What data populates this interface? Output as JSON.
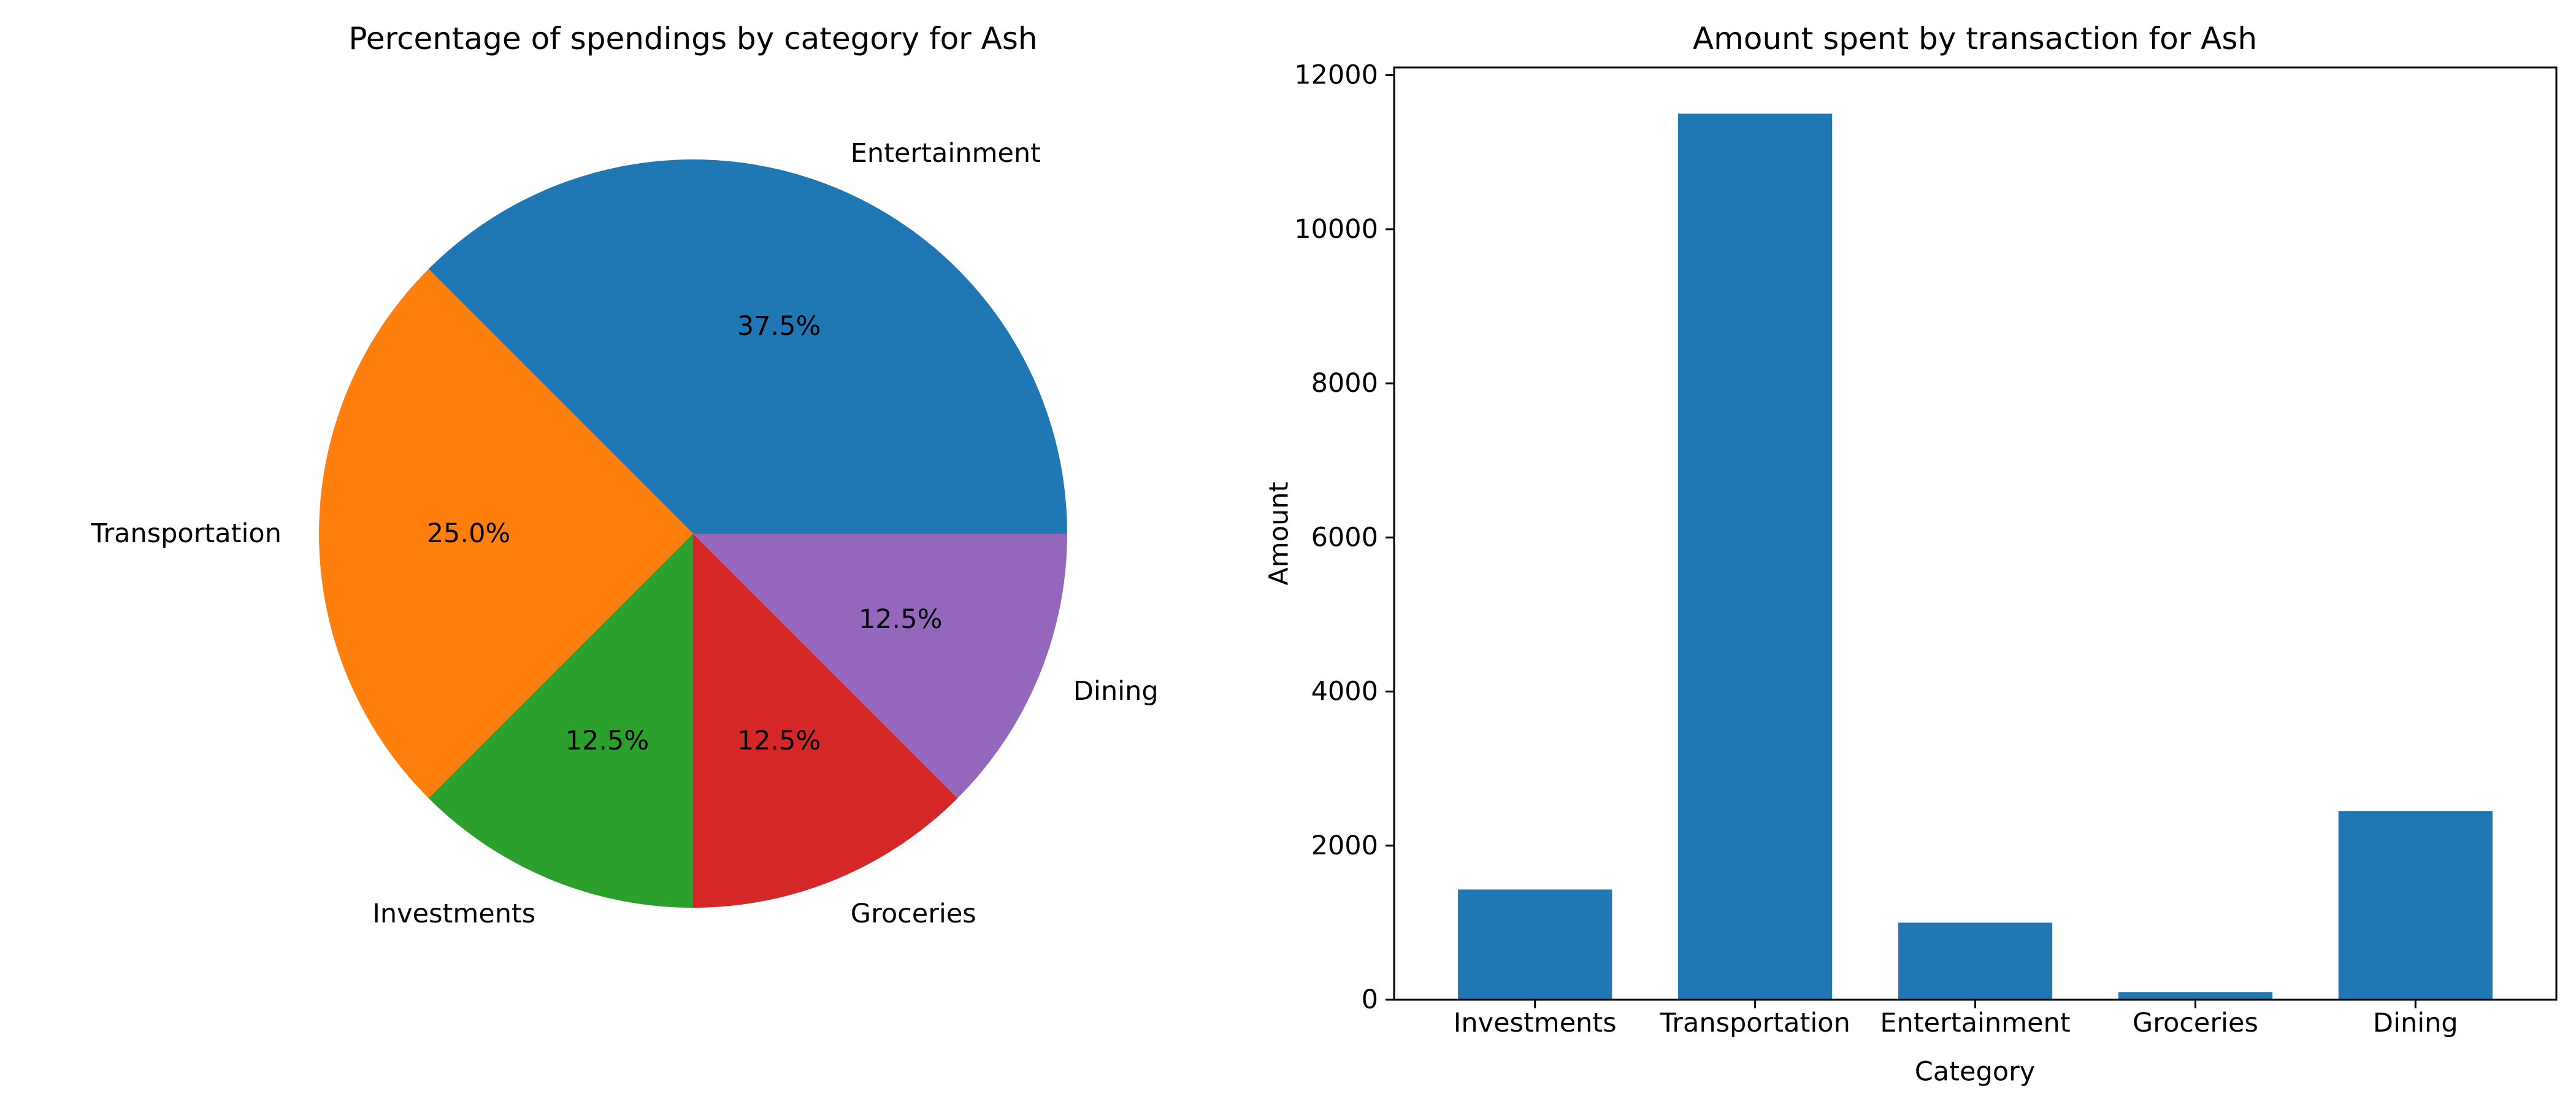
{
  "chart_data": [
    {
      "type": "pie",
      "title": "Percentage of spendings by category for Ash",
      "labels": [
        "Entertainment",
        "Transportation",
        "Investments",
        "Groceries",
        "Dining"
      ],
      "values": [
        37.5,
        25.0,
        12.5,
        12.5,
        12.5
      ],
      "value_labels": [
        "37.5%",
        "25.0%",
        "12.5%",
        "12.5%",
        "12.5%"
      ],
      "colors": [
        "#1f77b4",
        "#ff7f0e",
        "#2ca02c",
        "#d62728",
        "#9467bd"
      ]
    },
    {
      "type": "bar",
      "title": "Amount spent by transaction for Ash",
      "categories": [
        "Investments",
        "Transportation",
        "Entertainment",
        "Groceries",
        "Dining"
      ],
      "values": [
        1430,
        11500,
        1000,
        100,
        2450
      ],
      "xlabel": "Category",
      "ylabel": "Amount",
      "ylim": [
        0,
        12100
      ],
      "yticks": [
        0,
        2000,
        4000,
        6000,
        8000,
        10000,
        12000
      ],
      "color": "#1f77b4"
    }
  ]
}
